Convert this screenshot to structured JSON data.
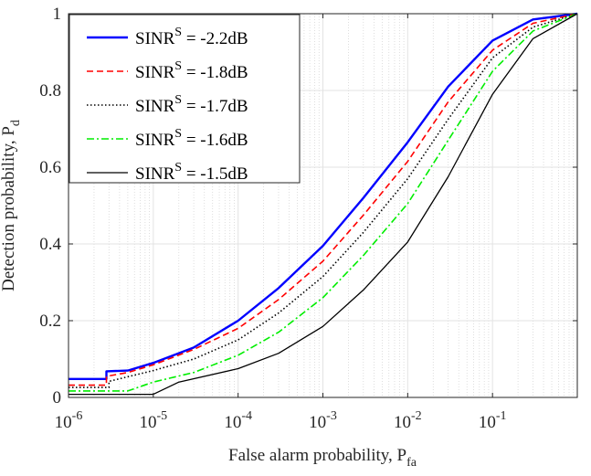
{
  "chart_data": {
    "type": "line",
    "xscale": "log",
    "xlim": [
      1e-06,
      1
    ],
    "ylim": [
      0,
      1
    ],
    "grid": true,
    "xlabel": {
      "main": "False alarm probability, P",
      "sub": "fa"
    },
    "ylabel": {
      "main": "Detection probability, P",
      "sub": "d"
    },
    "xticks": [
      {
        "value": 1e-06,
        "base": "10",
        "exp": "-6"
      },
      {
        "value": 1e-05,
        "base": "10",
        "exp": "-5"
      },
      {
        "value": 0.0001,
        "base": "10",
        "exp": "-4"
      },
      {
        "value": 0.001,
        "base": "10",
        "exp": "-3"
      },
      {
        "value": 0.01,
        "base": "10",
        "exp": "-2"
      },
      {
        "value": 0.1,
        "base": "10",
        "exp": "-1"
      }
    ],
    "yticks": [
      {
        "value": 0,
        "label": "0"
      },
      {
        "value": 0.2,
        "label": "0.2"
      },
      {
        "value": 0.4,
        "label": "0.4"
      },
      {
        "value": 0.6,
        "label": "0.6"
      },
      {
        "value": 0.8,
        "label": "0.8"
      },
      {
        "value": 1,
        "label": "1"
      }
    ],
    "legend_position": "top-left",
    "series": [
      {
        "name": "SINR^S = -2.2dB",
        "prefix": "SINR",
        "sup": "S",
        "suffix": " = -2.2dB",
        "color": "#0000ff",
        "dash": "solid",
        "width": 2.4,
        "points": [
          [
            1e-06,
            0.048
          ],
          [
            2.8e-06,
            0.048
          ],
          [
            2.8e-06,
            0.068
          ],
          [
            5e-06,
            0.07
          ],
          [
            1e-05,
            0.09
          ],
          [
            3e-05,
            0.13
          ],
          [
            0.0001,
            0.2
          ],
          [
            0.0003,
            0.285
          ],
          [
            0.001,
            0.395
          ],
          [
            0.003,
            0.52
          ],
          [
            0.01,
            0.665
          ],
          [
            0.03,
            0.81
          ],
          [
            0.1,
            0.93
          ],
          [
            0.3,
            0.985
          ],
          [
            1,
            1.0
          ]
        ]
      },
      {
        "name": "SINR^S = -1.8dB",
        "prefix": "SINR",
        "sup": "S",
        "suffix": " = -1.8dB",
        "color": "#ff0000",
        "dash": "dashed",
        "width": 1.6,
        "points": [
          [
            1e-06,
            0.032
          ],
          [
            2.8e-06,
            0.032
          ],
          [
            2.8e-06,
            0.055
          ],
          [
            5e-06,
            0.065
          ],
          [
            1e-05,
            0.085
          ],
          [
            3e-05,
            0.125
          ],
          [
            0.0001,
            0.18
          ],
          [
            0.0003,
            0.255
          ],
          [
            0.001,
            0.355
          ],
          [
            0.003,
            0.475
          ],
          [
            0.01,
            0.615
          ],
          [
            0.03,
            0.77
          ],
          [
            0.1,
            0.905
          ],
          [
            0.3,
            0.975
          ],
          [
            1,
            1.0
          ]
        ]
      },
      {
        "name": "SINR^S = -1.7dB",
        "prefix": "SINR",
        "sup": "S",
        "suffix": " = -1.7dB",
        "color": "#000000",
        "dash": "dotted",
        "width": 1.6,
        "points": [
          [
            1e-06,
            0.026
          ],
          [
            3e-06,
            0.026
          ],
          [
            3e-06,
            0.042
          ],
          [
            1e-05,
            0.07
          ],
          [
            3e-05,
            0.1
          ],
          [
            0.0001,
            0.15
          ],
          [
            0.0003,
            0.22
          ],
          [
            0.001,
            0.315
          ],
          [
            0.003,
            0.43
          ],
          [
            0.01,
            0.57
          ],
          [
            0.03,
            0.725
          ],
          [
            0.1,
            0.885
          ],
          [
            0.3,
            0.965
          ],
          [
            1,
            1.0
          ]
        ]
      },
      {
        "name": "SINR^S = -1.6dB",
        "prefix": "SINR",
        "sup": "S",
        "suffix": " = -1.6dB",
        "color": "#00ee00",
        "dash": "dashdot",
        "width": 1.6,
        "points": [
          [
            1e-06,
            0.017
          ],
          [
            5e-06,
            0.017
          ],
          [
            1e-05,
            0.04
          ],
          [
            3e-05,
            0.065
          ],
          [
            0.0001,
            0.11
          ],
          [
            0.0003,
            0.17
          ],
          [
            0.001,
            0.26
          ],
          [
            0.003,
            0.37
          ],
          [
            0.01,
            0.505
          ],
          [
            0.03,
            0.67
          ],
          [
            0.1,
            0.85
          ],
          [
            0.3,
            0.955
          ],
          [
            1,
            1.0
          ]
        ]
      },
      {
        "name": "SINR^S = -1.5dB",
        "prefix": "SINR",
        "sup": "S",
        "suffix": " = -1.5dB",
        "color": "#000000",
        "dash": "solid",
        "width": 1.3,
        "points": [
          [
            1e-06,
            0.008
          ],
          [
            1e-05,
            0.008
          ],
          [
            2e-05,
            0.04
          ],
          [
            0.0001,
            0.075
          ],
          [
            0.0003,
            0.115
          ],
          [
            0.001,
            0.185
          ],
          [
            0.003,
            0.28
          ],
          [
            0.01,
            0.405
          ],
          [
            0.03,
            0.575
          ],
          [
            0.1,
            0.79
          ],
          [
            0.3,
            0.935
          ],
          [
            1,
            1.0
          ]
        ]
      }
    ]
  }
}
